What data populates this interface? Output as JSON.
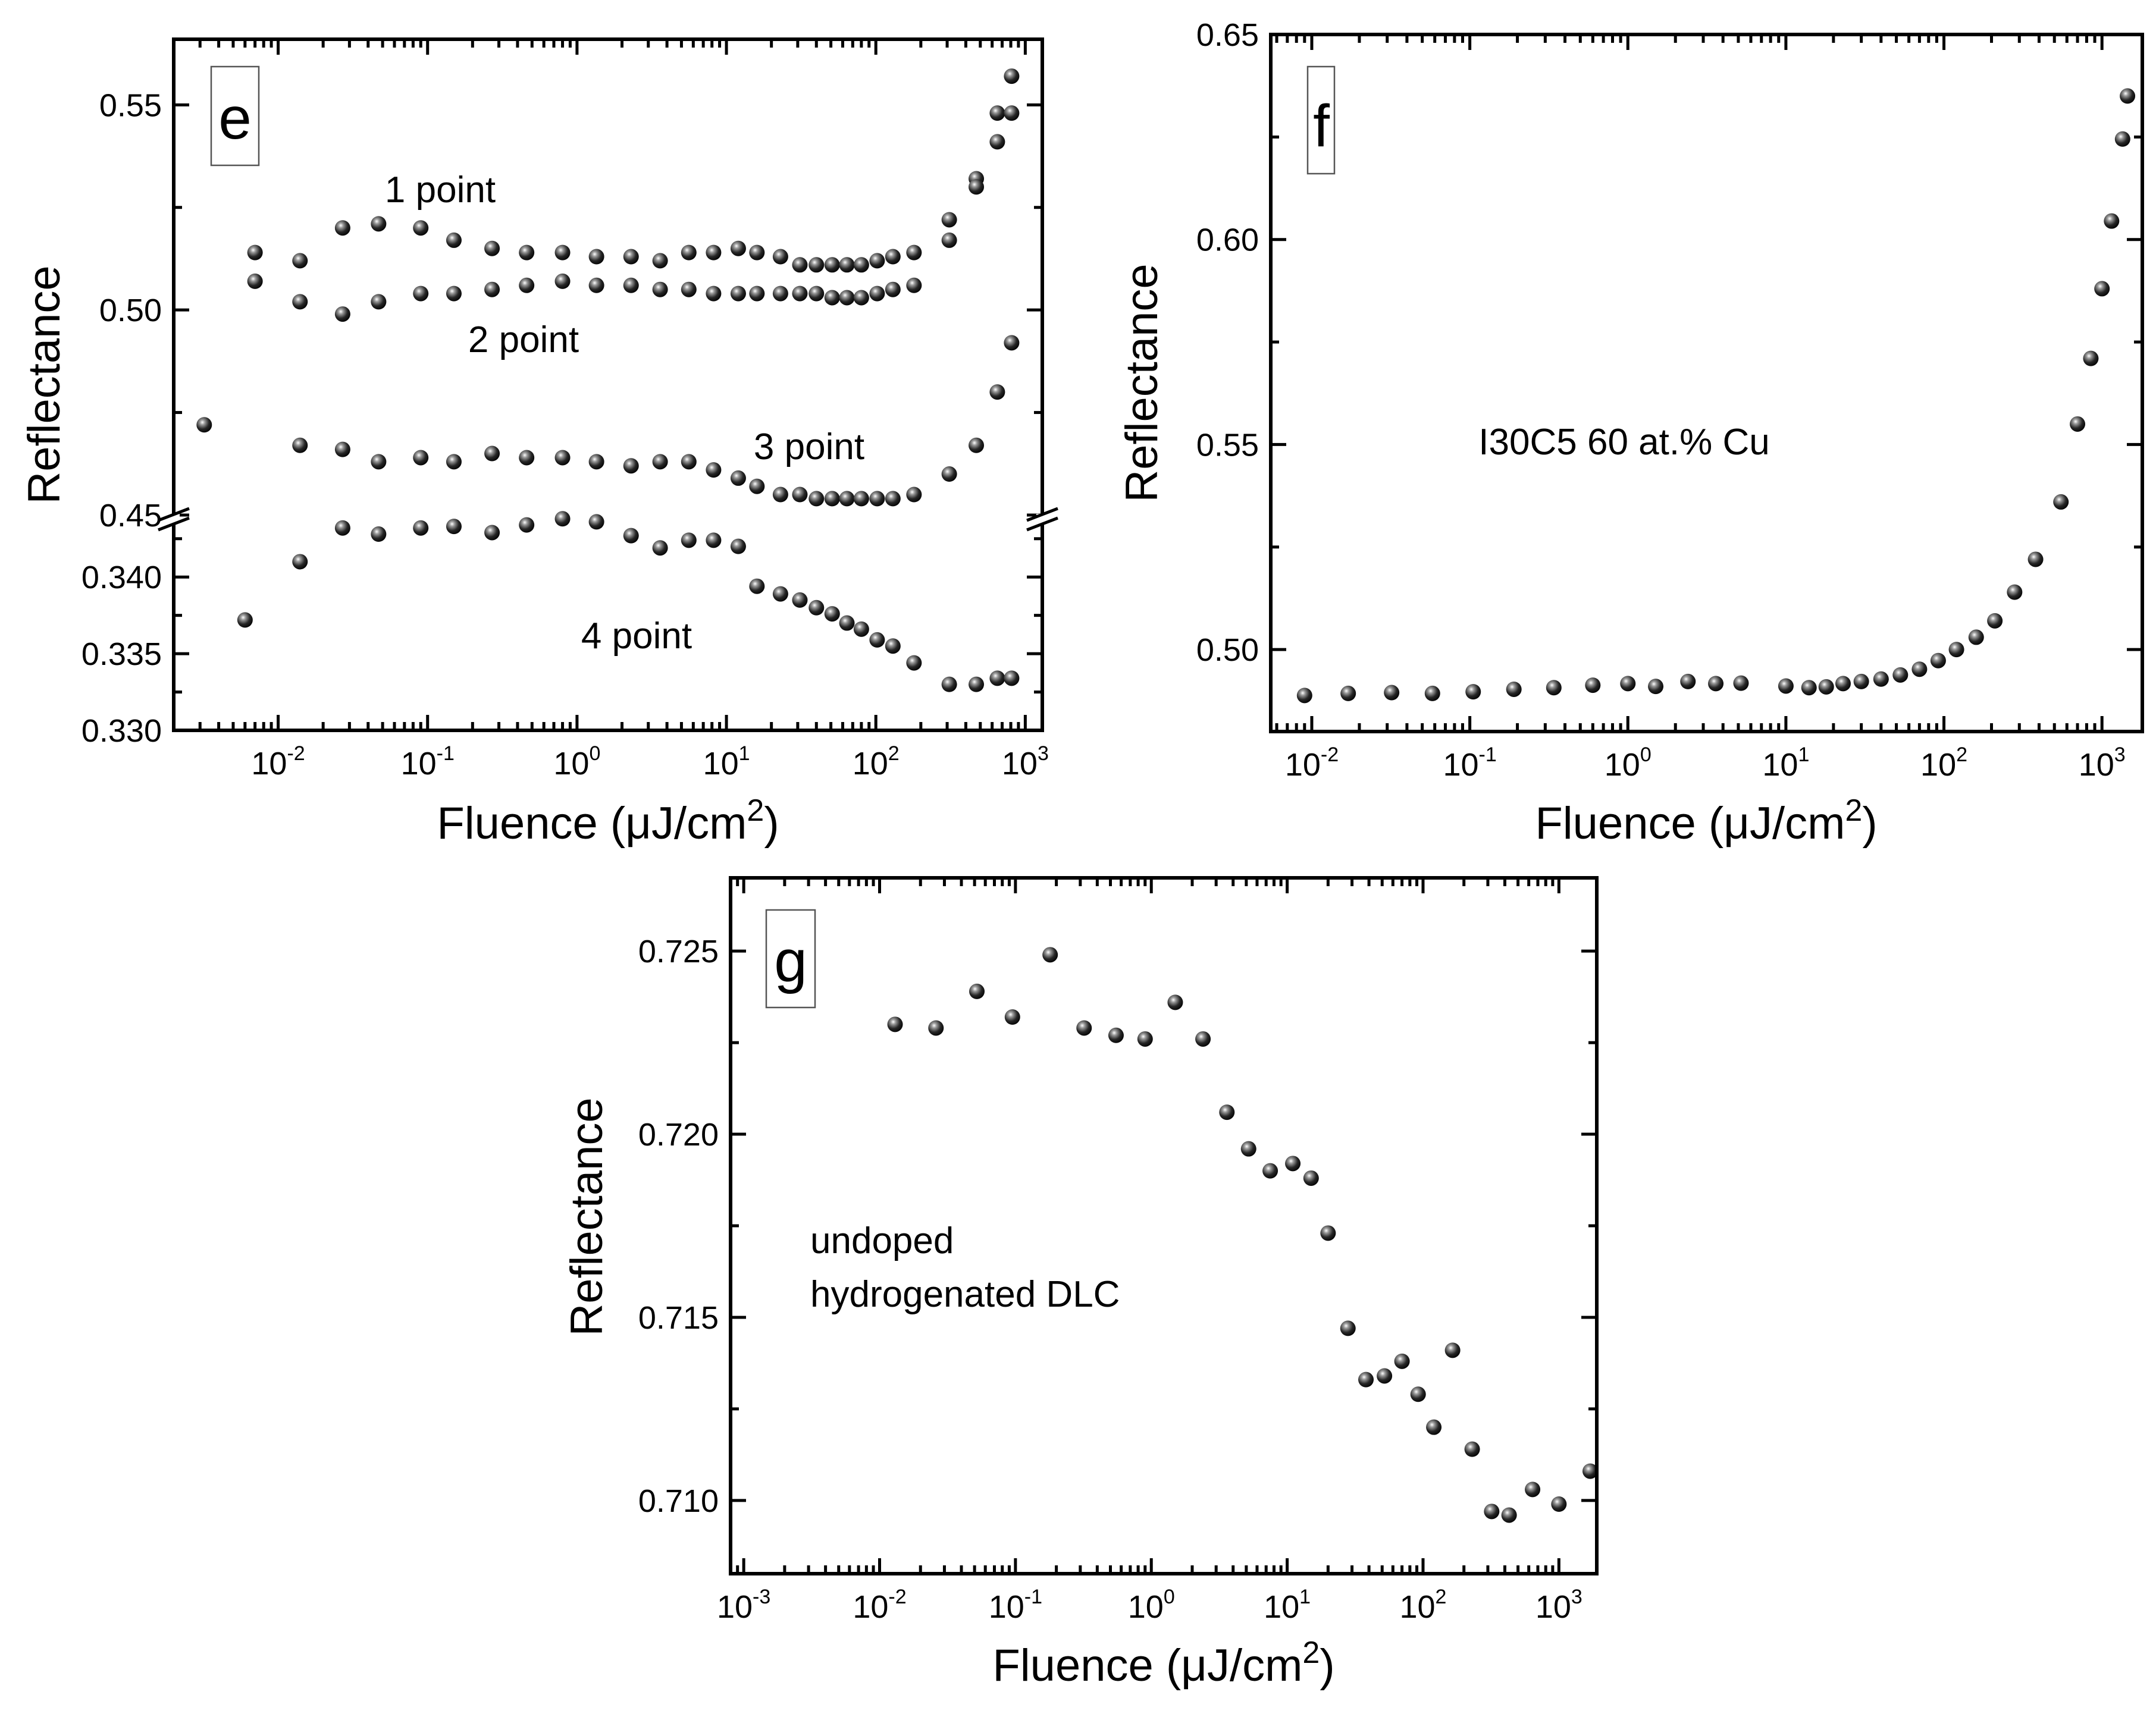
{
  "chart_data": [
    {
      "id": "e",
      "type": "scatter",
      "panel_label": "e",
      "xlabel": "Fluence (μJ/cm2)",
      "ylabel": "Reflectance",
      "x_scale": "log",
      "xlim": [
        0.002,
        1300
      ],
      "x_tick_labels": [
        "10-2",
        "10-1",
        "100",
        "101",
        "102",
        "103"
      ],
      "y_axis_broken": true,
      "y_upper": {
        "ylim": [
          0.45,
          0.566
        ],
        "tick_labels": [
          "0.45",
          "0.50",
          "0.55"
        ],
        "tick_values": [
          0.45,
          0.5,
          0.55
        ]
      },
      "y_lower": {
        "ylim": [
          0.33,
          0.3435
        ],
        "tick_labels": [
          "0.330",
          "0.335",
          "0.340"
        ],
        "tick_values": [
          0.33,
          0.335,
          0.34
        ]
      },
      "annotations": [
        "1 point",
        "2 point",
        "3 point",
        "4 point"
      ],
      "series": [
        {
          "name": "1 point",
          "segment": "upper",
          "x": [
            0.007,
            0.014,
            0.027,
            0.047,
            0.09,
            0.15,
            0.27,
            0.46,
            0.8,
            1.35,
            2.3,
            3.6,
            5.6,
            8.2,
            12,
            16,
            23,
            31,
            40,
            51,
            64,
            80,
            102,
            130,
            180,
            310,
            470,
            650,
            810
          ],
          "y": [
            0.514,
            0.512,
            0.52,
            0.521,
            0.52,
            0.517,
            0.515,
            0.514,
            0.514,
            0.513,
            0.513,
            0.512,
            0.514,
            0.514,
            0.515,
            0.514,
            0.513,
            0.511,
            0.511,
            0.511,
            0.511,
            0.511,
            0.512,
            0.513,
            0.514,
            0.522,
            0.532,
            0.541,
            0.557
          ]
        },
        {
          "name": "2 point",
          "segment": "upper",
          "x": [
            0.007,
            0.014,
            0.027,
            0.047,
            0.09,
            0.15,
            0.27,
            0.46,
            0.8,
            1.35,
            2.3,
            3.6,
            5.6,
            8.2,
            12,
            16,
            23,
            31,
            40,
            51,
            64,
            80,
            102,
            130,
            180,
            310,
            470,
            650,
            810
          ],
          "y": [
            0.507,
            0.502,
            0.499,
            0.502,
            0.504,
            0.504,
            0.505,
            0.506,
            0.507,
            0.506,
            0.506,
            0.505,
            0.505,
            0.504,
            0.504,
            0.504,
            0.504,
            0.504,
            0.504,
            0.503,
            0.503,
            0.503,
            0.504,
            0.505,
            0.506,
            0.517,
            0.53,
            0.548,
            0.548
          ]
        },
        {
          "name": "3 point",
          "segment": "upper",
          "x": [
            0.0032,
            0.014,
            0.027,
            0.047,
            0.09,
            0.15,
            0.27,
            0.46,
            0.8,
            1.35,
            2.3,
            3.6,
            5.6,
            8.2,
            12,
            16,
            23,
            31,
            40,
            51,
            64,
            80,
            102,
            130,
            180,
            310,
            470,
            650,
            810
          ],
          "y": [
            0.472,
            0.467,
            0.466,
            0.463,
            0.464,
            0.463,
            0.465,
            0.464,
            0.464,
            0.463,
            0.462,
            0.463,
            0.463,
            0.461,
            0.459,
            0.457,
            0.455,
            0.455,
            0.454,
            0.454,
            0.454,
            0.454,
            0.454,
            0.454,
            0.455,
            0.46,
            0.467,
            0.48,
            0.492
          ]
        },
        {
          "name": "4 point",
          "segment": "lower",
          "x": [
            0.006,
            0.014,
            0.027,
            0.047,
            0.09,
            0.15,
            0.27,
            0.46,
            0.8,
            1.35,
            2.3,
            3.6,
            5.6,
            8.2,
            12,
            16,
            23,
            31,
            40,
            51,
            64,
            80,
            102,
            130,
            180,
            310,
            470,
            650,
            810
          ],
          "y": [
            0.3372,
            0.341,
            0.3432,
            0.3428,
            0.3432,
            0.3433,
            0.3429,
            0.3434,
            0.3438,
            0.3436,
            0.3427,
            0.3419,
            0.3424,
            0.3424,
            0.342,
            0.3394,
            0.3389,
            0.3385,
            0.338,
            0.3376,
            0.337,
            0.3366,
            0.3359,
            0.3355,
            0.3344,
            0.333,
            0.333,
            0.3334,
            0.3334
          ]
        }
      ]
    },
    {
      "id": "f",
      "type": "scatter",
      "panel_label": "f",
      "xlabel": "Fluence (μJ/cm2)",
      "ylabel": "Reflectance",
      "x_scale": "log",
      "xlim": [
        0.0055,
        1800
      ],
      "ylim": [
        0.48,
        0.65
      ],
      "x_tick_labels": [
        "10-2",
        "10-1",
        "100",
        "101",
        "102",
        "103"
      ],
      "y_tick_labels": [
        "0.50",
        "0.55",
        "0.60",
        "0.65"
      ],
      "y_tick_values": [
        0.5,
        0.55,
        0.6,
        0.65
      ],
      "annotation": "I30C5 60 at.% Cu",
      "series": [
        {
          "name": "I30C5 60 at.% Cu",
          "x": [
            0.009,
            0.017,
            0.032,
            0.058,
            0.105,
            0.19,
            0.34,
            0.6,
            1.0,
            1.5,
            2.4,
            3.6,
            5.2,
            10,
            14,
            18,
            23,
            30,
            40,
            53,
            70,
            92,
            120,
            160,
            210,
            280,
            380,
            550,
            700,
            850,
            1000,
            1150,
            1350,
            1450
          ],
          "y": [
            0.4888,
            0.4893,
            0.4895,
            0.4893,
            0.4897,
            0.4903,
            0.4907,
            0.4913,
            0.4917,
            0.491,
            0.4922,
            0.4917,
            0.4918,
            0.4911,
            0.4907,
            0.4909,
            0.4917,
            0.4922,
            0.4928,
            0.4938,
            0.4952,
            0.4973,
            0.5,
            0.503,
            0.507,
            0.514,
            0.522,
            0.536,
            0.555,
            0.571,
            0.588,
            0.6045,
            0.6245,
            0.635
          ]
        }
      ]
    },
    {
      "id": "g",
      "type": "scatter",
      "panel_label": "g",
      "xlabel": "Fluence (μJ/cm2)",
      "ylabel": "Reflectance",
      "x_scale": "log",
      "xlim": [
        0.0008,
        1900
      ],
      "ylim": [
        0.708,
        0.727
      ],
      "x_tick_labels": [
        "10-3",
        "10-2",
        "10-1",
        "100",
        "101",
        "102",
        "103"
      ],
      "y_tick_labels": [
        "0.710",
        "0.715",
        "0.720",
        "0.725"
      ],
      "y_tick_values": [
        0.71,
        0.715,
        0.72,
        0.725
      ],
      "annotation_lines": [
        "undoped",
        "hydrogenated DLC"
      ],
      "series": [
        {
          "name": "undoped hydrogenated DLC",
          "x": [
            0.013,
            0.026,
            0.052,
            0.095,
            0.18,
            0.32,
            0.55,
            0.9,
            1.5,
            2.4,
            3.6,
            5.2,
            7.5,
            11,
            15,
            20,
            28,
            38,
            52,
            70,
            92,
            120,
            165,
            230,
            320,
            430,
            640,
            1000,
            1700
          ],
          "y": [
            0.723,
            0.7229,
            0.7239,
            0.7232,
            0.7249,
            0.7229,
            0.7227,
            0.7226,
            0.7236,
            0.7226,
            0.7206,
            0.7196,
            0.719,
            0.7192,
            0.7188,
            0.7173,
            0.7147,
            0.7133,
            0.7134,
            0.7138,
            0.7129,
            0.712,
            0.7141,
            0.7114,
            0.7097,
            0.7096,
            0.7103,
            0.7099,
            0.7108
          ]
        }
      ]
    }
  ]
}
